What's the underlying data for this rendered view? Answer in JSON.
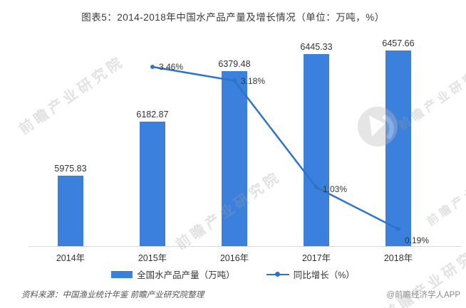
{
  "page": {
    "title": "图表5：2014-2018年中国水产品产量及增长情况（单位：万吨，%）",
    "source": "资料来源：中国渔业统计年鉴 前瞻产业研究院整理",
    "credit": "@前瞻经济学人APP",
    "watermark_text": "前瞻产业研究院"
  },
  "chart_data": {
    "type": "bar",
    "subtype": "bar-line-combo",
    "title": "图表5：2014-2018年中国水产品产量及增长情况（单位：万吨，%）",
    "categories": [
      "2014年",
      "2015年",
      "2016年",
      "2017年",
      "2018年"
    ],
    "series": [
      {
        "name": "全国水产品产量（万吨）",
        "type": "bar",
        "color": "#3b80dc",
        "values": [
          5975.83,
          6182.87,
          6379.48,
          6445.33,
          6457.66
        ]
      },
      {
        "name": "同比增长（%）",
        "type": "line",
        "color": "#2e73c8",
        "values": [
          null,
          3.46,
          3.18,
          1.03,
          0.19
        ]
      }
    ],
    "xlabel": "",
    "ylabel": "",
    "left_axis_range_estimate": [
      5700,
      6500
    ],
    "right_axis_range_estimate": [
      0,
      3.6
    ],
    "grid": false,
    "axes_ticks_shown": false,
    "value_labels_shown": true,
    "legend_position": "bottom"
  }
}
